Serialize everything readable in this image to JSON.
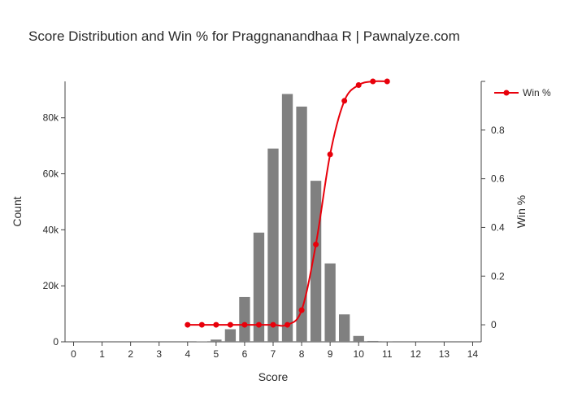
{
  "chart_data": {
    "type": "bar",
    "title": "Score Distribution and Win % for Praggnanandhaa R | Pawnalyze.com",
    "xlabel": "Score",
    "ylabel": "Count",
    "y2label": "Win %",
    "xlim": [
      -0.3,
      14.3
    ],
    "ylim": [
      0,
      93000
    ],
    "y2lim": [
      -0.07,
      1.0
    ],
    "x_ticks": [
      0,
      1,
      2,
      3,
      4,
      5,
      6,
      7,
      8,
      9,
      10,
      11,
      12,
      13,
      14
    ],
    "y_ticks": [
      0,
      20000,
      40000,
      60000,
      80000
    ],
    "y_tick_labels": [
      "0",
      "20k",
      "40k",
      "60k",
      "80k"
    ],
    "y2_ticks": [
      0,
      0.2,
      0.4,
      0.6,
      0.8
    ],
    "y2_tick_labels": [
      "0",
      "0.2",
      "0.4",
      "0.6",
      "0.8"
    ],
    "legend_position": "top-right",
    "bar_color": "#808080",
    "line_color": "#e8000b",
    "series": [
      {
        "type": "bar",
        "x": [
          4.5,
          5,
          5.5,
          6,
          6.5,
          7,
          7.5,
          8,
          8.5,
          9,
          9.5,
          10,
          10.5,
          11
        ],
        "values": [
          100,
          800,
          4500,
          16000,
          39000,
          69000,
          88500,
          84000,
          57500,
          28000,
          9800,
          2100,
          300,
          40
        ]
      },
      {
        "type": "line",
        "name": "Win %",
        "x": [
          4,
          4.5,
          5,
          5.5,
          6,
          6.5,
          7,
          7.5,
          8,
          8.5,
          9,
          9.5,
          10,
          10.5,
          11
        ],
        "values": [
          0,
          0,
          0,
          0,
          0,
          0,
          0,
          0,
          0.06,
          0.33,
          0.7,
          0.92,
          0.985,
          1.0,
          1.0
        ]
      }
    ]
  }
}
